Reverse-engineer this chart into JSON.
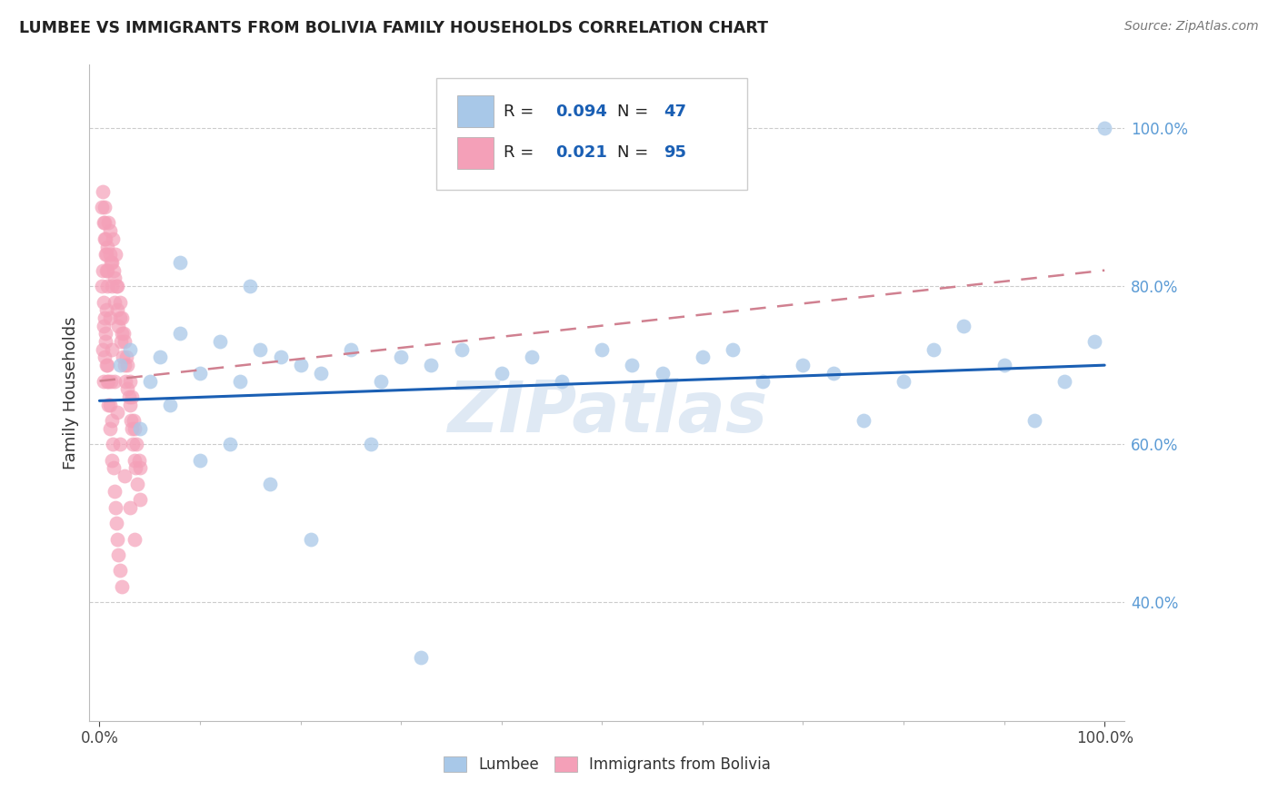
{
  "title": "LUMBEE VS IMMIGRANTS FROM BOLIVIA FAMILY HOUSEHOLDS CORRELATION CHART",
  "source": "Source: ZipAtlas.com",
  "ylabel": "Family Households",
  "watermark": "ZIPatlas",
  "legend_label1": "Lumbee",
  "legend_label2": "Immigrants from Bolivia",
  "R1": 0.094,
  "N1": 47,
  "R2": 0.021,
  "N2": 95,
  "color_lumbee": "#a8c8e8",
  "color_bolivia": "#f4a0b8",
  "line_color_lumbee": "#1a5fb4",
  "line_color_bolivia": "#d08090",
  "background_color": "#ffffff",
  "lumbee_x": [
    0.02,
    0.03,
    0.05,
    0.06,
    0.08,
    0.1,
    0.12,
    0.14,
    0.16,
    0.18,
    0.2,
    0.22,
    0.25,
    0.28,
    0.3,
    0.33,
    0.36,
    0.4,
    0.43,
    0.46,
    0.5,
    0.53,
    0.56,
    0.6,
    0.63,
    0.66,
    0.7,
    0.73,
    0.76,
    0.8,
    0.83,
    0.86,
    0.9,
    0.93,
    0.96,
    0.99,
    0.04,
    0.07,
    0.1,
    0.13,
    0.17,
    0.21,
    0.08,
    0.15,
    0.27,
    0.32,
    1.0
  ],
  "lumbee_y": [
    0.7,
    0.72,
    0.68,
    0.71,
    0.74,
    0.69,
    0.73,
    0.68,
    0.72,
    0.71,
    0.7,
    0.69,
    0.72,
    0.68,
    0.71,
    0.7,
    0.72,
    0.69,
    0.71,
    0.68,
    0.72,
    0.7,
    0.69,
    0.71,
    0.72,
    0.68,
    0.7,
    0.69,
    0.63,
    0.68,
    0.72,
    0.75,
    0.7,
    0.63,
    0.68,
    0.73,
    0.62,
    0.65,
    0.58,
    0.6,
    0.55,
    0.48,
    0.83,
    0.8,
    0.6,
    0.33,
    1.0
  ],
  "bolivia_x": [
    0.005,
    0.005,
    0.006,
    0.007,
    0.008,
    0.008,
    0.009,
    0.01,
    0.01,
    0.011,
    0.012,
    0.012,
    0.013,
    0.014,
    0.015,
    0.015,
    0.016,
    0.017,
    0.018,
    0.018,
    0.019,
    0.02,
    0.02,
    0.021,
    0.022,
    0.022,
    0.023,
    0.024,
    0.025,
    0.025,
    0.026,
    0.027,
    0.028,
    0.028,
    0.029,
    0.03,
    0.03,
    0.031,
    0.032,
    0.032,
    0.033,
    0.034,
    0.035,
    0.035,
    0.036,
    0.037,
    0.038,
    0.039,
    0.04,
    0.04,
    0.003,
    0.004,
    0.004,
    0.005,
    0.006,
    0.007,
    0.008,
    0.009,
    0.01,
    0.011,
    0.012,
    0.013,
    0.014,
    0.015,
    0.016,
    0.017,
    0.018,
    0.019,
    0.02,
    0.022,
    0.002,
    0.003,
    0.004,
    0.005,
    0.006,
    0.007,
    0.008,
    0.009,
    0.01,
    0.012,
    0.002,
    0.003,
    0.004,
    0.005,
    0.006,
    0.007,
    0.008,
    0.01,
    0.012,
    0.015,
    0.018,
    0.02,
    0.025,
    0.03,
    0.035
  ],
  "bolivia_y": [
    0.88,
    0.9,
    0.86,
    0.84,
    0.82,
    0.85,
    0.88,
    0.84,
    0.87,
    0.83,
    0.8,
    0.83,
    0.86,
    0.82,
    0.78,
    0.81,
    0.84,
    0.8,
    0.77,
    0.8,
    0.75,
    0.78,
    0.76,
    0.73,
    0.76,
    0.74,
    0.71,
    0.74,
    0.7,
    0.73,
    0.68,
    0.71,
    0.67,
    0.7,
    0.66,
    0.68,
    0.65,
    0.63,
    0.66,
    0.62,
    0.6,
    0.63,
    0.58,
    0.62,
    0.57,
    0.6,
    0.55,
    0.58,
    0.53,
    0.57,
    0.72,
    0.75,
    0.68,
    0.71,
    0.74,
    0.77,
    0.7,
    0.68,
    0.65,
    0.68,
    0.63,
    0.6,
    0.57,
    0.54,
    0.52,
    0.5,
    0.48,
    0.46,
    0.44,
    0.42,
    0.8,
    0.82,
    0.78,
    0.76,
    0.73,
    0.7,
    0.68,
    0.65,
    0.62,
    0.58,
    0.9,
    0.92,
    0.88,
    0.86,
    0.84,
    0.82,
    0.8,
    0.76,
    0.72,
    0.68,
    0.64,
    0.6,
    0.56,
    0.52,
    0.48
  ],
  "lum_line_x0": 0.0,
  "lum_line_x1": 1.0,
  "lum_line_y0": 0.655,
  "lum_line_y1": 0.7,
  "bol_line_x0": 0.0,
  "bol_line_x1": 1.0,
  "bol_line_y0": 0.68,
  "bol_line_y1": 0.82,
  "xlim": [
    -0.01,
    1.02
  ],
  "ylim": [
    0.25,
    1.08
  ],
  "yticks": [
    0.4,
    0.6,
    0.8,
    1.0
  ],
  "ytick_labels": [
    "40.0%",
    "60.0%",
    "80.0%",
    "100.0%"
  ]
}
